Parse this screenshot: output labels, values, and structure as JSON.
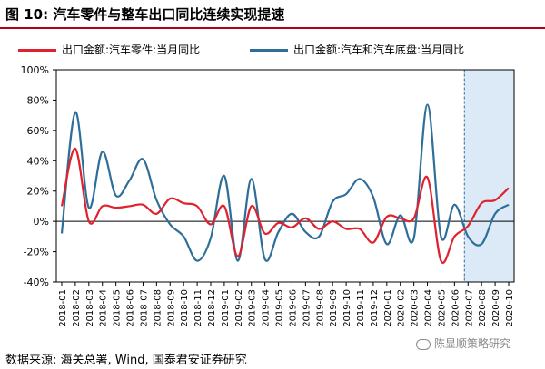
{
  "header": {
    "title": "图 10:  汽车零件与整车出口同比连续实现提速"
  },
  "footer": {
    "source": "数据来源:  海关总署, Wind, 国泰君安证券研究",
    "watermark": "陈显顺策略研究"
  },
  "colors": {
    "parts": "#e0222e",
    "vehicles": "#2e6e99",
    "highlight": "#d5e6f4",
    "highlight_border": "#2e6e99",
    "title_rule": "#b00020"
  },
  "chart_data": {
    "type": "line",
    "title": "",
    "xlabel": "",
    "ylabel": "",
    "ylim": [
      -40,
      100
    ],
    "yticks": [
      "-40%",
      "-20%",
      "0%",
      "20%",
      "40%",
      "60%",
      "80%",
      "100%"
    ],
    "ytick_values": [
      -40,
      -20,
      0,
      20,
      40,
      60,
      80,
      100
    ],
    "grid": false,
    "legend_position": "top",
    "x": [
      "2018-01",
      "2018-02",
      "2018-03",
      "2018-04",
      "2018-05",
      "2018-06",
      "2018-07",
      "2018-08",
      "2018-09",
      "2018-10",
      "2018-11",
      "2018-12",
      "2019-01",
      "2019-02",
      "2019-03",
      "2019-04",
      "2019-05",
      "2019-06",
      "2019-07",
      "2019-08",
      "2019-09",
      "2019-10",
      "2019-11",
      "2019-12",
      "2020-01",
      "2020-02",
      "2020-03",
      "2020-04",
      "2020-05",
      "2020-06",
      "2020-07",
      "2020-08",
      "2020-09",
      "2020-10"
    ],
    "xtick_labels": [
      "2018-01",
      "2018-02",
      "2018-03",
      "2018-04",
      "2018-05",
      "2018-06",
      "2018-07",
      "2018-08",
      "2018-09",
      "2018-10",
      "2018-11",
      "2018-12",
      "2019-01",
      "2019-02",
      "2019-03",
      "2019-04",
      "2019-05",
      "2019-06",
      "2019-07",
      "2019-08",
      "2019-09",
      "2019-10",
      "2019-11",
      "2019-12",
      "2020-01",
      "2020-02",
      "2020-03",
      "2020-04",
      "2020-05",
      "2020-06",
      "2020-07",
      "2020-08",
      "2020-09",
      "2020-10"
    ],
    "highlight_range": [
      "2020-07",
      "2020-10"
    ],
    "series": [
      {
        "name": "出口金额:汽车零件:当月同比",
        "color": "#e0222e",
        "values": [
          10,
          48,
          0,
          10,
          9,
          10,
          11,
          5,
          15,
          12,
          10,
          -2,
          10,
          -23,
          10,
          -8,
          -1,
          -4,
          2,
          -5,
          0,
          -5,
          -5,
          -14,
          3,
          2,
          2,
          29,
          -26,
          -10,
          -3,
          12,
          14,
          22
        ]
      },
      {
        "name": "出口金额:汽车和汽车底盘:当月同比",
        "color": "#2e6e99",
        "values": [
          -8,
          72,
          9,
          46,
          17,
          27,
          41,
          14,
          -2,
          -10,
          -26,
          -11,
          30,
          -26,
          28,
          -25,
          -7,
          5,
          -7,
          -10,
          13,
          18,
          28,
          16,
          -15,
          4,
          -11,
          77,
          -10,
          11,
          -10,
          -15,
          5,
          11
        ]
      }
    ]
  }
}
